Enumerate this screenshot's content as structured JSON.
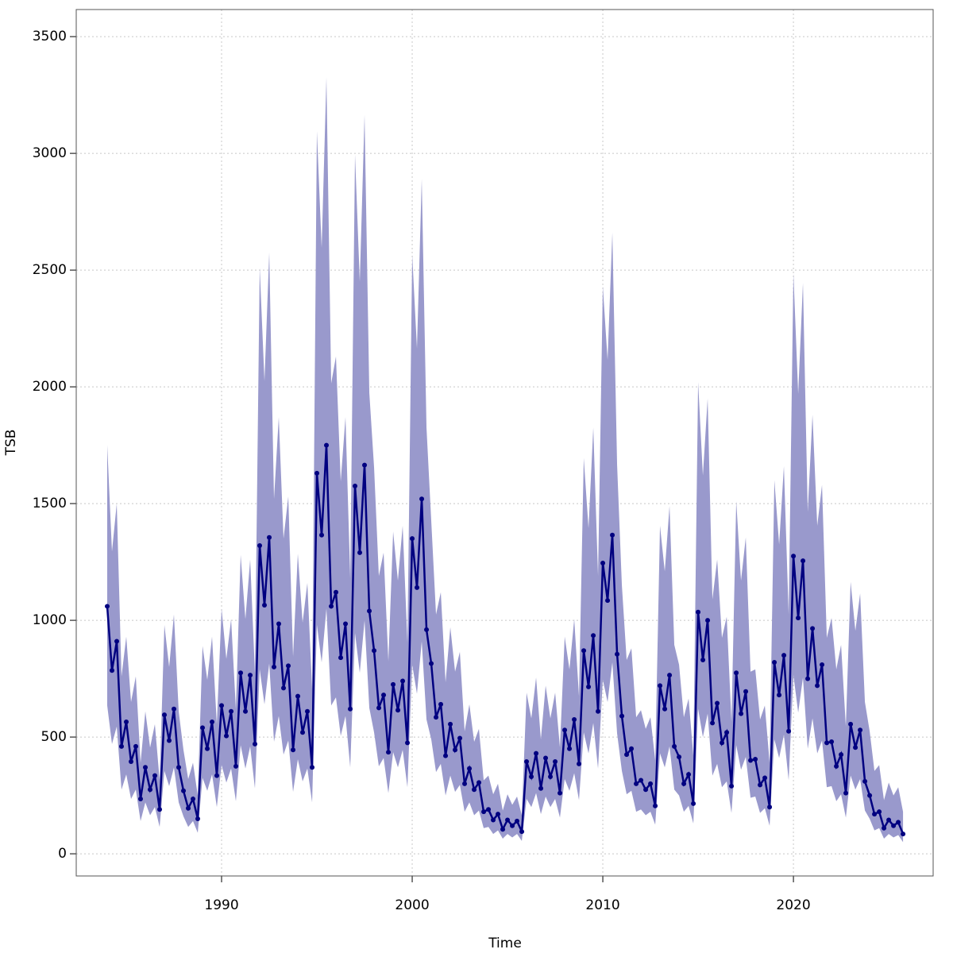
{
  "chart_data": {
    "type": "line_band",
    "xlabel": "Time",
    "ylabel": "TSB",
    "x": [
      1984,
      1984.25,
      1984.5,
      1984.75,
      1985,
      1985.25,
      1985.5,
      1985.75,
      1986,
      1986.25,
      1986.5,
      1986.75,
      1987,
      1987.25,
      1987.5,
      1987.75,
      1988,
      1988.25,
      1988.5,
      1988.75,
      1989,
      1989.25,
      1989.5,
      1989.75,
      1990,
      1990.25,
      1990.5,
      1990.75,
      1991,
      1991.25,
      1991.5,
      1991.75,
      1992,
      1992.25,
      1992.5,
      1992.75,
      1993,
      1993.25,
      1993.5,
      1993.75,
      1994,
      1994.25,
      1994.5,
      1994.75,
      1995,
      1995.25,
      1995.5,
      1995.75,
      1996,
      1996.25,
      1996.5,
      1996.75,
      1997,
      1997.25,
      1997.5,
      1997.75,
      1998,
      1998.25,
      1998.5,
      1998.75,
      1999,
      1999.25,
      1999.5,
      1999.75,
      2000,
      2000.25,
      2000.5,
      2000.75,
      2001,
      2001.25,
      2001.5,
      2001.75,
      2002,
      2002.25,
      2002.5,
      2002.75,
      2003,
      2003.25,
      2003.5,
      2003.75,
      2004,
      2004.25,
      2004.5,
      2004.75,
      2005,
      2005.25,
      2005.5,
      2005.75,
      2006,
      2006.25,
      2006.5,
      2006.75,
      2007,
      2007.25,
      2007.5,
      2007.75,
      2008,
      2008.25,
      2008.5,
      2008.75,
      2009,
      2009.25,
      2009.5,
      2009.75,
      2010,
      2010.25,
      2010.5,
      2010.75,
      2011,
      2011.25,
      2011.5,
      2011.75,
      2012,
      2012.25,
      2012.5,
      2012.75,
      2013,
      2013.25,
      2013.5,
      2013.75,
      2014,
      2014.25,
      2014.5,
      2014.75,
      2015,
      2015.25,
      2015.5,
      2015.75,
      2016,
      2016.25,
      2016.5,
      2016.75,
      2017,
      2017.25,
      2017.5,
      2017.75,
      2018,
      2018.25,
      2018.5,
      2018.75,
      2019,
      2019.25,
      2019.5,
      2019.75,
      2020,
      2020.25,
      2020.5,
      2020.75,
      2021,
      2021.25,
      2021.5,
      2021.75,
      2022,
      2022.25,
      2022.5,
      2022.75,
      2023,
      2023.25,
      2023.5,
      2023.75,
      2024,
      2024.25,
      2024.5,
      2024.75,
      2025,
      2025.25,
      2025.5,
      2025.75
    ],
    "values": [
      1060,
      785,
      910,
      460,
      565,
      395,
      460,
      235,
      370,
      275,
      335,
      190,
      595,
      485,
      620,
      370,
      270,
      195,
      235,
      150,
      540,
      450,
      565,
      335,
      635,
      505,
      610,
      375,
      775,
      610,
      765,
      470,
      1320,
      1065,
      1355,
      800,
      985,
      710,
      805,
      445,
      675,
      520,
      610,
      370,
      1630,
      1365,
      1750,
      1060,
      1120,
      840,
      985,
      620,
      1575,
      1290,
      1665,
      1040,
      870,
      625,
      680,
      435,
      725,
      615,
      740,
      475,
      1350,
      1140,
      1520,
      960,
      815,
      585,
      640,
      420,
      555,
      445,
      495,
      300,
      365,
      275,
      305,
      180,
      190,
      145,
      170,
      105,
      145,
      120,
      140,
      95,
      395,
      330,
      430,
      280,
      410,
      330,
      395,
      260,
      530,
      450,
      575,
      385,
      870,
      715,
      935,
      610,
      1245,
      1085,
      1365,
      855,
      590,
      425,
      450,
      300,
      315,
      275,
      300,
      205,
      720,
      620,
      765,
      460,
      415,
      300,
      340,
      215,
      1035,
      830,
      1000,
      560,
      645,
      475,
      520,
      290,
      775,
      600,
      695,
      400,
      405,
      295,
      325,
      200,
      820,
      680,
      850,
      525,
      1275,
      1010,
      1255,
      750,
      965,
      720,
      810,
      475,
      480,
      375,
      425,
      260,
      555,
      455,
      530,
      310,
      250,
      170,
      180,
      110,
      145,
      120,
      135,
      85
    ],
    "upper": [
      1750,
      1295,
      1500,
      760,
      930,
      650,
      760,
      390,
      610,
      455,
      555,
      315,
      980,
      800,
      1025,
      610,
      445,
      320,
      390,
      250,
      890,
      745,
      930,
      555,
      1050,
      835,
      1005,
      620,
      1280,
      1005,
      1260,
      775,
      2510,
      2025,
      2575,
      1520,
      1870,
      1350,
      1530,
      845,
      1285,
      990,
      1160,
      705,
      3095,
      2595,
      3325,
      2015,
      2130,
      1595,
      1870,
      1180,
      2995,
      2450,
      3165,
      1975,
      1655,
      1190,
      1290,
      825,
      1380,
      1170,
      1405,
      905,
      2565,
      2165,
      2890,
      1825,
      1425,
      1025,
      1120,
      735,
      970,
      780,
      865,
      525,
      640,
      480,
      535,
      315,
      335,
      255,
      300,
      185,
      255,
      210,
      245,
      165,
      690,
      580,
      755,
      490,
      720,
      580,
      690,
      455,
      930,
      790,
      1005,
      675,
      1695,
      1395,
      1825,
      1190,
      2430,
      2115,
      2660,
      1665,
      1150,
      830,
      880,
      585,
      615,
      535,
      585,
      400,
      1405,
      1210,
      1490,
      895,
      810,
      585,
      665,
      420,
      2020,
      1620,
      1950,
      1090,
      1260,
      925,
      1015,
      565,
      1510,
      1170,
      1355,
      780,
      790,
      575,
      635,
      390,
      1600,
      1325,
      1660,
      1025,
      2485,
      1970,
      2445,
      1465,
      1880,
      1405,
      1580,
      925,
      1010,
      790,
      895,
      545,
      1165,
      955,
      1115,
      650,
      525,
      355,
      380,
      230,
      305,
      250,
      285,
      180
    ],
    "lower": [
      635,
      470,
      545,
      275,
      340,
      235,
      275,
      140,
      220,
      165,
      200,
      115,
      355,
      290,
      370,
      220,
      160,
      115,
      140,
      90,
      325,
      270,
      340,
      200,
      380,
      305,
      365,
      225,
      465,
      365,
      460,
      280,
      790,
      640,
      815,
      480,
      590,
      425,
      485,
      265,
      405,
      310,
      365,
      220,
      980,
      820,
      1050,
      635,
      670,
      505,
      590,
      370,
      945,
      775,
      1000,
      625,
      520,
      375,
      410,
      260,
      435,
      370,
      445,
      285,
      810,
      685,
      910,
      575,
      490,
      350,
      385,
      250,
      335,
      265,
      295,
      180,
      220,
      165,
      185,
      110,
      115,
      85,
      100,
      65,
      85,
      70,
      85,
      55,
      235,
      200,
      260,
      170,
      245,
      200,
      235,
      155,
      320,
      270,
      345,
      230,
      520,
      430,
      560,
      365,
      745,
      650,
      820,
      515,
      355,
      255,
      270,
      180,
      190,
      165,
      180,
      125,
      430,
      370,
      460,
      275,
      250,
      180,
      205,
      130,
      620,
      500,
      600,
      335,
      385,
      285,
      310,
      175,
      465,
      360,
      415,
      240,
      245,
      175,
      195,
      120,
      490,
      410,
      510,
      315,
      765,
      605,
      755,
      450,
      580,
      430,
      485,
      285,
      290,
      225,
      255,
      155,
      335,
      275,
      320,
      185,
      150,
      100,
      110,
      65,
      85,
      70,
      80,
      50
    ],
    "color": "#000080",
    "band_color": "#9999cc",
    "xlim": [
      1982.375,
      2027.33
    ],
    "ylim": [
      -95,
      3616
    ],
    "xticks": [
      1990,
      2000,
      2010,
      2020
    ],
    "yticks": [
      0,
      500,
      1000,
      1500,
      2000,
      2500,
      3000,
      3500
    ],
    "grid": true
  }
}
